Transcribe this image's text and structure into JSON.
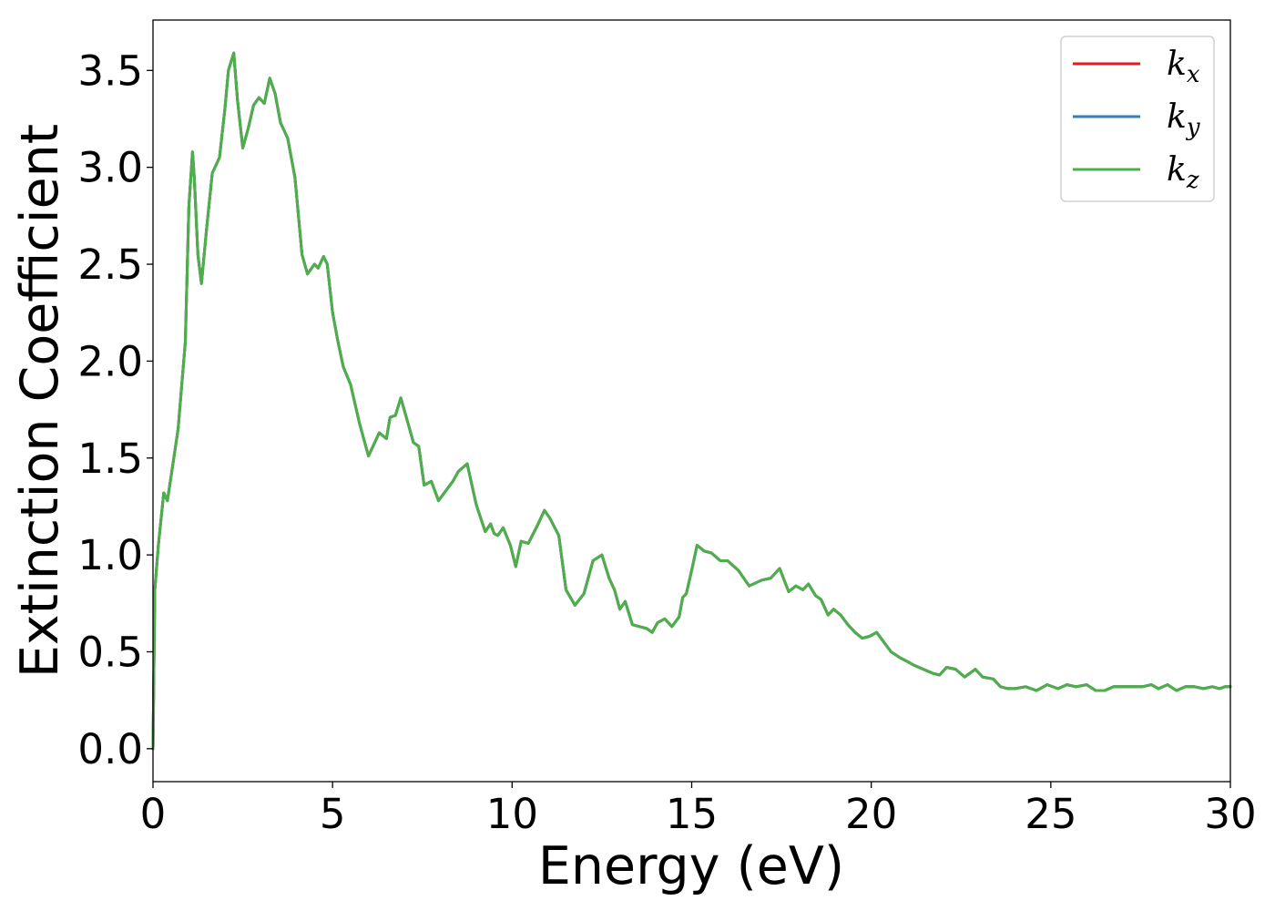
{
  "chart_data": {
    "type": "line",
    "title": "",
    "xlabel": "Energy (eV)",
    "ylabel": "Extinction Coefficient",
    "xlim": [
      0,
      30
    ],
    "ylim": [
      -0.17,
      3.76
    ],
    "xticks": [
      0,
      5,
      10,
      15,
      20,
      25,
      30
    ],
    "xtick_labels": [
      "0",
      "5",
      "10",
      "15",
      "20",
      "25",
      "30"
    ],
    "yticks": [
      0.0,
      0.5,
      1.0,
      1.5,
      2.0,
      2.5,
      3.0,
      3.5
    ],
    "ytick_labels": [
      "0.0",
      "0.5",
      "1.0",
      "1.5",
      "2.0",
      "2.5",
      "3.0",
      "3.5"
    ],
    "grid": false,
    "legend_position": "top-right",
    "series_order": [
      "kx",
      "ky",
      "kz"
    ],
    "series": [
      {
        "name": "kx",
        "label_base": "k",
        "label_sub": "x",
        "color": "#e41a1c"
      },
      {
        "name": "ky",
        "label_base": "k",
        "label_sub": "y",
        "color": "#377eb8"
      },
      {
        "name": "kz",
        "label_base": "k",
        "label_sub": "z",
        "color": "#4daf4a"
      }
    ],
    "x": [
      0,
      0.05,
      0.15,
      0.3,
      0.4,
      0.5,
      0.7,
      0.9,
      1.0,
      1.1,
      1.15,
      1.25,
      1.35,
      1.5,
      1.65,
      1.85,
      2.0,
      2.1,
      2.25,
      2.35,
      2.5,
      2.65,
      2.8,
      2.95,
      3.1,
      3.25,
      3.4,
      3.55,
      3.75,
      3.95,
      4.15,
      4.3,
      4.5,
      4.6,
      4.75,
      4.85,
      5.0,
      5.15,
      5.3,
      5.5,
      5.75,
      6.0,
      6.3,
      6.5,
      6.6,
      6.75,
      6.9,
      7.1,
      7.25,
      7.4,
      7.55,
      7.75,
      7.95,
      8.15,
      8.35,
      8.5,
      8.75,
      9.0,
      9.25,
      9.4,
      9.5,
      9.6,
      9.75,
      9.95,
      10.1,
      10.25,
      10.45,
      10.7,
      10.9,
      11.05,
      11.3,
      11.5,
      11.75,
      12.0,
      12.25,
      12.5,
      12.7,
      12.85,
      13.0,
      13.15,
      13.35,
      13.55,
      13.75,
      13.9,
      14.05,
      14.25,
      14.45,
      14.65,
      14.75,
      14.85,
      15.0,
      15.15,
      15.35,
      15.55,
      15.8,
      16.0,
      16.3,
      16.6,
      16.95,
      17.2,
      17.45,
      17.7,
      17.9,
      18.1,
      18.25,
      18.45,
      18.6,
      18.8,
      18.95,
      19.15,
      19.35,
      19.55,
      19.75,
      19.95,
      20.15,
      20.35,
      20.55,
      20.8,
      21.0,
      21.2,
      21.45,
      21.7,
      21.9,
      22.1,
      22.35,
      22.6,
      22.9,
      23.1,
      23.4,
      23.6,
      23.8,
      24.0,
      24.3,
      24.6,
      24.9,
      25.2,
      25.45,
      25.7,
      26.0,
      26.25,
      26.5,
      26.75,
      27.0,
      27.25,
      27.55,
      27.8,
      28.0,
      28.25,
      28.5,
      28.75,
      29.0,
      29.25,
      29.5,
      29.7,
      29.85,
      30.0
    ],
    "y": [
      0.0,
      0.82,
      1.05,
      1.32,
      1.28,
      1.4,
      1.65,
      2.1,
      2.8,
      3.08,
      2.95,
      2.55,
      2.4,
      2.7,
      2.97,
      3.05,
      3.3,
      3.5,
      3.59,
      3.35,
      3.1,
      3.2,
      3.32,
      3.36,
      3.33,
      3.46,
      3.38,
      3.23,
      3.15,
      2.95,
      2.55,
      2.45,
      2.5,
      2.48,
      2.54,
      2.5,
      2.25,
      2.1,
      1.97,
      1.88,
      1.68,
      1.51,
      1.63,
      1.6,
      1.71,
      1.72,
      1.81,
      1.68,
      1.58,
      1.56,
      1.36,
      1.38,
      1.28,
      1.33,
      1.38,
      1.43,
      1.47,
      1.26,
      1.12,
      1.16,
      1.11,
      1.1,
      1.14,
      1.05,
      0.94,
      1.07,
      1.06,
      1.15,
      1.23,
      1.19,
      1.1,
      0.82,
      0.74,
      0.8,
      0.97,
      1.0,
      0.88,
      0.82,
      0.72,
      0.76,
      0.64,
      0.63,
      0.62,
      0.6,
      0.65,
      0.67,
      0.63,
      0.68,
      0.78,
      0.8,
      0.92,
      1.05,
      1.02,
      1.01,
      0.97,
      0.97,
      0.92,
      0.84,
      0.87,
      0.88,
      0.93,
      0.81,
      0.84,
      0.82,
      0.85,
      0.79,
      0.77,
      0.69,
      0.72,
      0.69,
      0.64,
      0.6,
      0.57,
      0.58,
      0.6,
      0.55,
      0.5,
      0.47,
      0.45,
      0.43,
      0.41,
      0.39,
      0.38,
      0.42,
      0.41,
      0.37,
      0.41,
      0.37,
      0.36,
      0.32,
      0.31,
      0.31,
      0.32,
      0.3,
      0.33,
      0.31,
      0.33,
      0.32,
      0.33,
      0.3,
      0.3,
      0.32,
      0.32,
      0.32,
      0.32,
      0.33,
      0.31,
      0.33,
      0.3,
      0.32,
      0.32,
      0.31,
      0.32,
      0.31,
      0.32,
      0.32
    ]
  }
}
